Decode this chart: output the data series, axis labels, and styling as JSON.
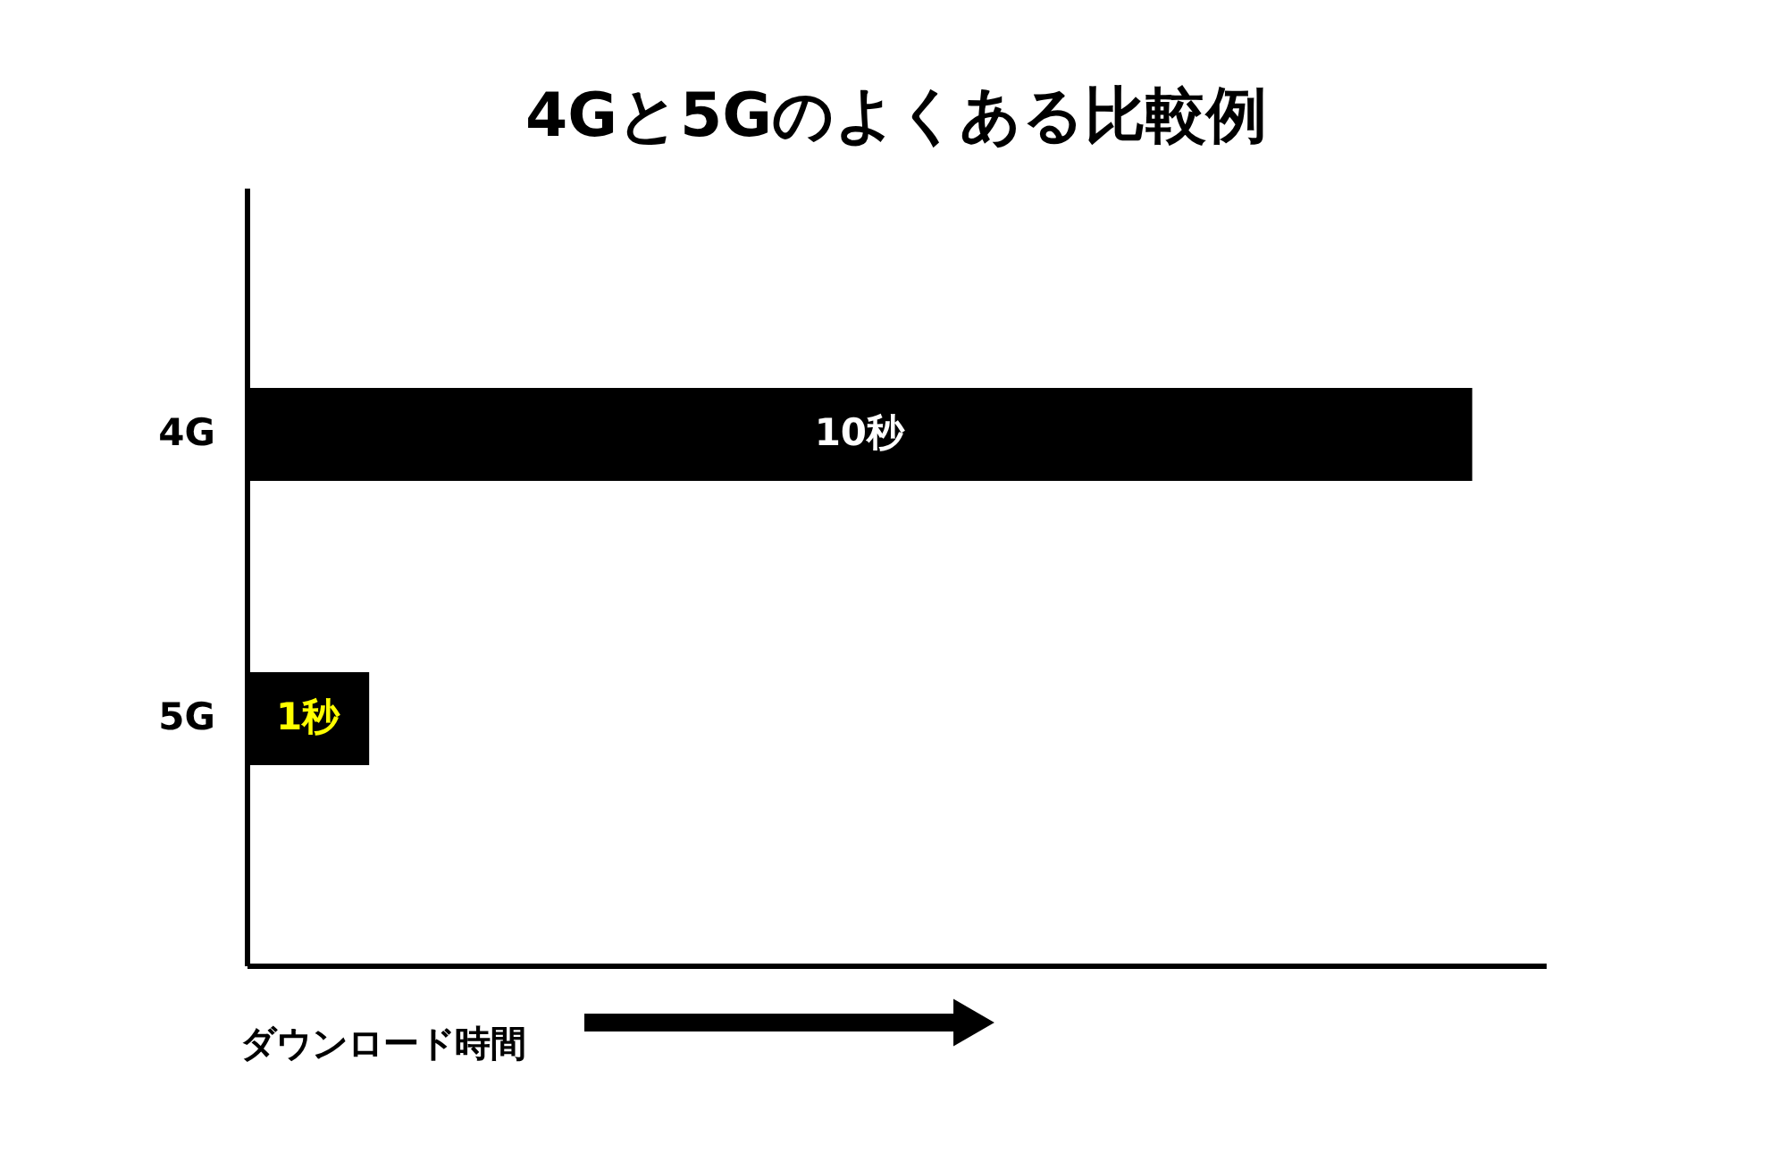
{
  "chart_data": {
    "type": "bar",
    "orientation": "horizontal",
    "title": "4Gと5Gのよくある比較例",
    "xlabel": "ダウンロード時間",
    "categories": [
      "4G",
      "5G"
    ],
    "values": [
      10,
      1
    ],
    "value_labels": [
      "10秒",
      "1秒"
    ],
    "color": "#000000",
    "grid": false,
    "tick_labels": "y"
  }
}
